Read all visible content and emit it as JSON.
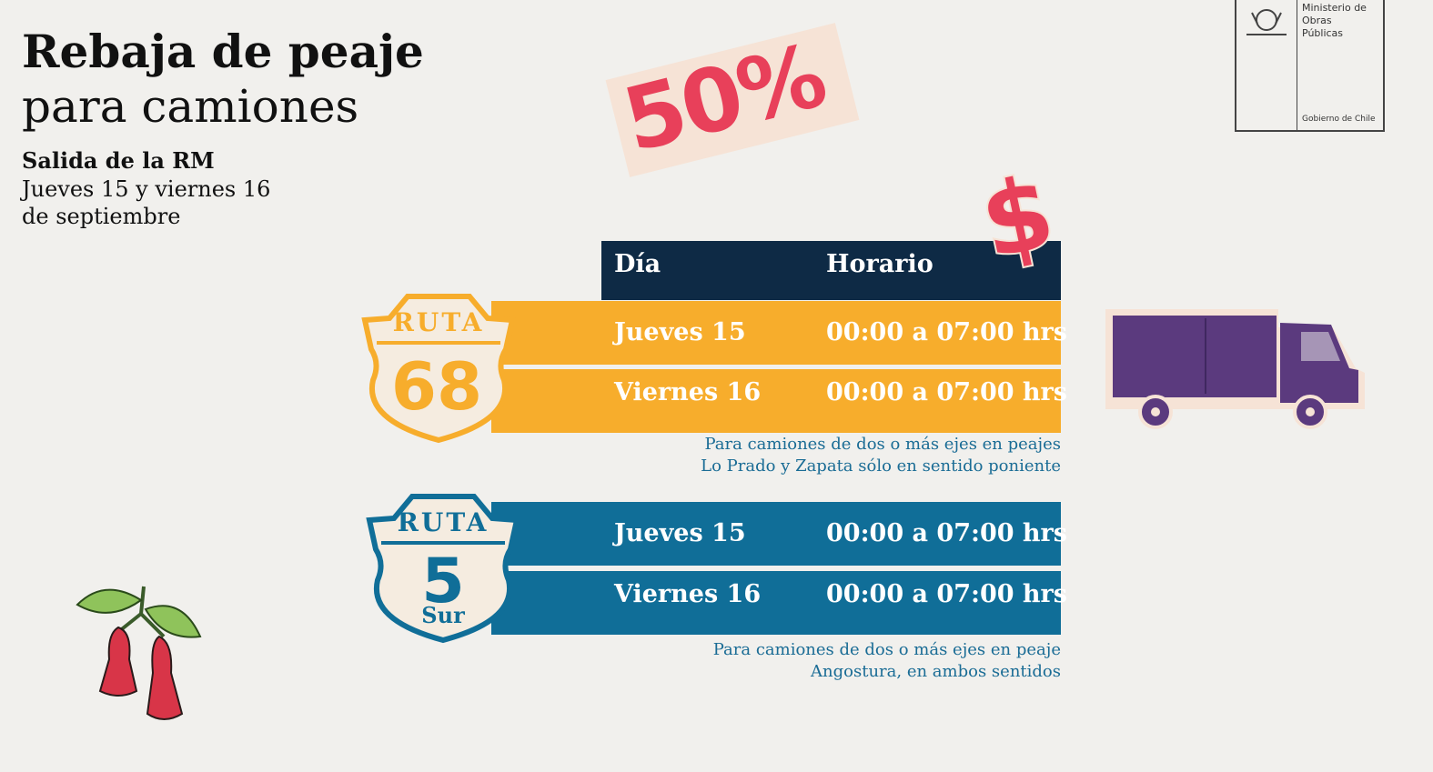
{
  "logo": {
    "ministry": [
      "Ministerio de",
      "Obras",
      "Públicas"
    ],
    "government": "Gobierno de Chile"
  },
  "header": {
    "title": [
      "Rebaja de peaje",
      "para camiones"
    ],
    "subtitle": "Salida de la RM",
    "dates": [
      "Jueves 15 y viernes 16",
      "de septiembre"
    ]
  },
  "discount": "50%",
  "currency_symbol": "$",
  "table": {
    "columns": [
      "Día",
      "Horario"
    ],
    "routes": [
      {
        "shield": {
          "top": "RUTA",
          "number": "68"
        },
        "rows": [
          [
            "Jueves 15",
            "00:00 a 07:00 hrs"
          ],
          [
            "Viernes 16",
            "00:00 a 07:00 hrs"
          ]
        ],
        "note": [
          "Para camiones de dos o más ejes en peajes",
          "Lo Prado y Zapata sólo en sentido poniente"
        ]
      },
      {
        "shield": {
          "top": "RUTA",
          "number": "5",
          "bottom": "Sur"
        },
        "rows": [
          [
            "Jueves 15",
            "00:00 a 07:00 hrs"
          ],
          [
            "Viernes 16",
            "00:00 a 07:00 hrs"
          ]
        ],
        "note": [
          "Para camiones de dos o más ejes en peaje",
          "Angostura, en ambos sentidos"
        ]
      }
    ]
  }
}
